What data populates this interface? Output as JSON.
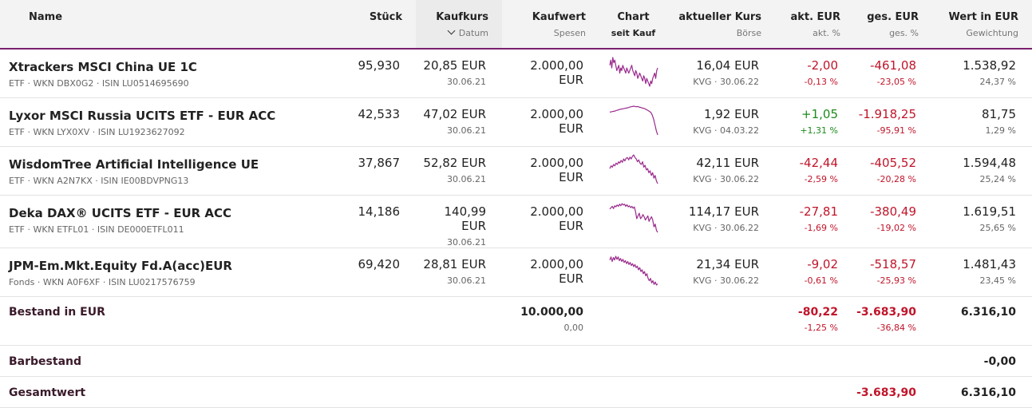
{
  "columns": {
    "name": "Name",
    "stueck": "Stück",
    "kaufkurs": "Kaufkurs",
    "kaufkurs_sub": "Datum",
    "kaufwert": "Kaufwert",
    "kaufwert_sub": "Spesen",
    "chart": "Chart",
    "chart_sub": "seit Kauf",
    "aktueller_kurs": "aktueller Kurs",
    "aktueller_kurs_sub": "Börse",
    "akt_eur": "akt. EUR",
    "akt_eur_sub": "akt. %",
    "ges_eur": "ges. EUR",
    "ges_eur_sub": "ges. %",
    "wert": "Wert in EUR",
    "wert_sub": "Gewichtung"
  },
  "colors": {
    "accent": "#7a1f6e",
    "negative": "#c0152a",
    "positive": "#1e8a1e",
    "sparkline": "#9a2a8c"
  },
  "positions": [
    {
      "name": "Xtrackers MSCI China UE 1C",
      "meta": "ETF · WKN DBX0G2 · ISIN LU0514695690",
      "stueck": "95,930",
      "kaufkurs": "20,85 EUR",
      "kaufdatum": "30.06.21",
      "kaufwert": "2.000,00 EUR",
      "kurs": "16,04 EUR",
      "boerse": "KVG · 30.06.22",
      "akt_eur": "-2,00",
      "akt_pct": "-0,13 %",
      "akt_dir": "red",
      "ges_eur": "-461,08",
      "ges_pct": "-23,05 %",
      "wert": "1.538,92",
      "gewichtung": "24,37 %",
      "sparkline": [
        10,
        12,
        9,
        13,
        11,
        12,
        10,
        8,
        9,
        10,
        7,
        9,
        8,
        10,
        9,
        8,
        7,
        9,
        8,
        7,
        8,
        9,
        10,
        8,
        7,
        6,
        8,
        7,
        5,
        6,
        7,
        6,
        5,
        4,
        6,
        5,
        3,
        5,
        4,
        3,
        2,
        4,
        3,
        5,
        6,
        7,
        5,
        8,
        9
      ]
    },
    {
      "name": "Lyxor MSCI Russia UCITS ETF - EUR ACC",
      "meta": "ETF · WKN LYX0XV · ISIN LU1923627092",
      "stueck": "42,533",
      "kaufkurs": "47,02 EUR",
      "kaufdatum": "30.06.21",
      "kaufwert": "2.000,00 EUR",
      "kurs": "1,92 EUR",
      "boerse": "KVG · 04.03.22",
      "akt_eur": "+1,05",
      "akt_pct": "+1,31 %",
      "akt_dir": "green",
      "ges_eur": "-1.918,25",
      "ges_pct": "-95,91 %",
      "wert": "81,75",
      "gewichtung": "1,29 %",
      "sparkline": [
        8.6,
        8.7,
        8.8,
        8.9,
        9.0,
        9.2,
        9.3,
        9.5,
        9.6,
        9.7,
        9.8,
        9.9,
        10.0,
        10.1,
        10.2,
        10.4,
        10.5,
        10.6,
        10.7,
        10.6,
        10.5,
        10.6,
        10.4,
        10.3,
        10.1,
        10.0,
        9.9,
        9.6,
        9.4,
        9.1,
        8.8,
        8.4,
        7.5,
        6.0,
        4.0,
        2.0,
        0.5
      ]
    },
    {
      "name": "WisdomTree Artificial Intelligence UE",
      "meta": "ETF · WKN A2N7KX · ISIN IE00BDVPNG13",
      "stueck": "37,867",
      "kaufkurs": "52,82 EUR",
      "kaufdatum": "30.06.21",
      "kaufwert": "2.000,00 EUR",
      "kurs": "42,11 EUR",
      "boerse": "KVG · 30.06.22",
      "akt_eur": "-42,44",
      "akt_pct": "-2,59 %",
      "akt_dir": "red",
      "ges_eur": "-405,52",
      "ges_pct": "-20,28 %",
      "wert": "1.594,48",
      "gewichtung": "25,24 %",
      "sparkline": [
        7,
        8,
        7.5,
        8.5,
        8,
        9,
        8.5,
        9.5,
        9,
        10,
        9.3,
        10.5,
        9.8,
        10.8,
        11,
        10.2,
        11.2,
        10.5,
        11.5,
        12,
        11,
        10.5,
        9.5,
        10.2,
        9,
        8.5,
        9.5,
        7.5,
        8.2,
        6.5,
        7,
        5.5,
        6.2,
        4.5,
        5.5,
        3.5,
        4.5,
        2.5,
        1.5
      ]
    },
    {
      "name": "Deka DAX® UCITS ETF - EUR ACC",
      "meta": "ETF · WKN ETFL01 · ISIN DE000ETFL011",
      "stueck": "14,186",
      "kaufkurs": "140,99 EUR",
      "kaufdatum": "30.06.21",
      "kaufwert": "2.000,00 EUR",
      "kurs": "114,17 EUR",
      "boerse": "KVG · 30.06.22",
      "akt_eur": "-27,81",
      "akt_pct": "-1,69 %",
      "akt_dir": "red",
      "ges_eur": "-380,49",
      "ges_pct": "-19,02 %",
      "wert": "1.619,51",
      "gewichtung": "25,65 %",
      "sparkline": [
        10,
        10.5,
        11,
        10.2,
        11.2,
        10.8,
        11.5,
        11,
        11.8,
        11.2,
        12,
        11.5,
        11.8,
        11,
        11.6,
        10.8,
        11.2,
        10.5,
        11,
        10.3,
        10.8,
        9,
        6.5,
        7.5,
        8.5,
        6.5,
        7,
        8,
        7.2,
        6,
        6.8,
        7.5,
        5.5,
        6.5,
        7.2,
        6,
        3.5,
        4.5,
        2.2,
        1.5
      ]
    },
    {
      "name": "JPM-Em.Mkt.Equity Fd.A(acc)EUR",
      "meta": "Fonds · WKN A0F6XF · ISIN LU0217576759",
      "stueck": "69,420",
      "kaufkurs": "28,81 EUR",
      "kaufdatum": "30.06.21",
      "kaufwert": "2.000,00 EUR",
      "kurs": "21,34 EUR",
      "boerse": "KVG · 30.06.22",
      "akt_eur": "-9,02",
      "akt_pct": "-0,61 %",
      "akt_dir": "red",
      "ges_eur": "-518,57",
      "ges_pct": "-25,93 %",
      "wert": "1.481,43",
      "gewichtung": "23,45 %",
      "sparkline": [
        11,
        12,
        10.5,
        11.8,
        11,
        12.2,
        11.2,
        12,
        10.8,
        11.5,
        10.5,
        11.2,
        10.2,
        10.8,
        9.8,
        10.5,
        9.5,
        10.2,
        9.2,
        9.8,
        8.8,
        9.5,
        8.5,
        9,
        7.8,
        8.5,
        7.2,
        7.8,
        6.5,
        7.2,
        5.8,
        6.5,
        5,
        4.2,
        5,
        3.5,
        4.2,
        3,
        3.8,
        2.8,
        3.2
      ]
    }
  ],
  "summary": {
    "bestand": {
      "label": "Bestand in EUR",
      "kaufwert": "10.000,00",
      "spesen": "0,00",
      "akt_eur": "-80,22",
      "akt_pct": "-1,25 %",
      "ges_eur": "-3.683,90",
      "ges_pct": "-36,84 %",
      "wert": "6.316,10"
    },
    "barbestand": {
      "label": "Barbestand",
      "wert": "-0,00"
    },
    "gesamtwert": {
      "label": "Gesamtwert",
      "ges_eur": "-3.683,90",
      "wert": "6.316,10"
    }
  }
}
